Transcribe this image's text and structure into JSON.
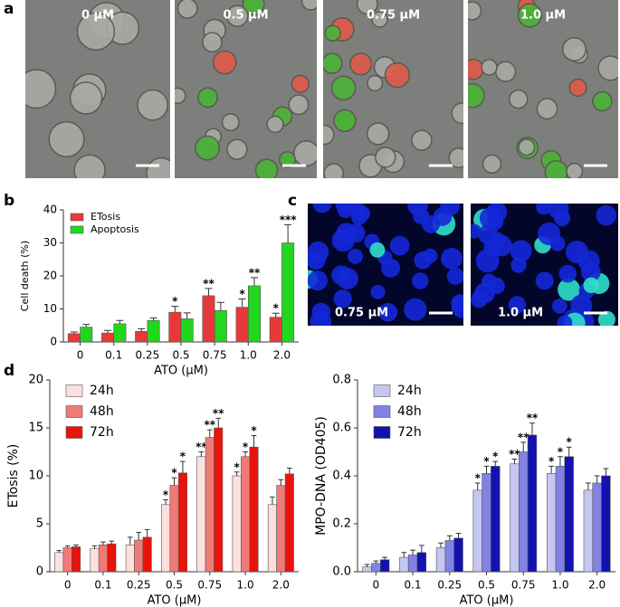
{
  "panels": {
    "a": {
      "label": "a",
      "images": [
        "0 μM",
        "0.5 μM",
        "0.75 μM",
        "1.0 μM"
      ]
    },
    "b": {
      "label": "b"
    },
    "c": {
      "label": "c",
      "images": [
        "0.75 μM",
        "1.0 μM"
      ]
    },
    "d": {
      "label": "d"
    }
  },
  "chart_data": [
    {
      "type": "bar",
      "y_label": "Cell death (%)",
      "x_label": "ATO (μM)",
      "categories": [
        "0",
        "0.1",
        "0.25",
        "0.5",
        "0.75",
        "1.0",
        "2.0"
      ],
      "ylim": [
        0,
        40
      ],
      "yticks": [
        0,
        10,
        20,
        30,
        40
      ],
      "grid": false,
      "legend": "upper left",
      "series": [
        {
          "name": "ETosis",
          "color": "#e8393a",
          "values": [
            2.5,
            2.7,
            3.2,
            9,
            14,
            10.5,
            7.5
          ],
          "errors": [
            0.5,
            0.8,
            0.8,
            1.8,
            2.2,
            2.5,
            1.2
          ],
          "stars": [
            null,
            null,
            null,
            "*",
            "**",
            "*",
            "*"
          ]
        },
        {
          "name": "Apoptosis",
          "color": "#22d61e",
          "values": [
            4.5,
            5.5,
            6.5,
            7,
            9.5,
            17,
            30
          ],
          "errors": [
            0.8,
            1,
            0.8,
            1.8,
            2.5,
            2.5,
            5.5
          ],
          "stars": [
            null,
            null,
            null,
            null,
            null,
            "**",
            "***"
          ]
        }
      ]
    },
    {
      "type": "bar",
      "y_label": "ETosis (%)",
      "x_label": "ATO (μM)",
      "categories": [
        "0",
        "0.1",
        "0.25",
        "0.5",
        "0.75",
        "1.0",
        "2.0"
      ],
      "ylim": [
        0,
        20
      ],
      "yticks": [
        0,
        5,
        10,
        15,
        20
      ],
      "grid": false,
      "legend": "upper left",
      "series": [
        {
          "name": "24h",
          "color": "#fde0de",
          "values": [
            2.0,
            2.4,
            2.8,
            7.0,
            12.0,
            10.0,
            7.0
          ],
          "errors": [
            0.2,
            0.3,
            0.8,
            0.5,
            0.5,
            0.4,
            0.8
          ],
          "stars": [
            null,
            null,
            null,
            "*",
            "**",
            "*",
            null
          ]
        },
        {
          "name": "48h",
          "color": "#f07a78",
          "values": [
            2.5,
            2.8,
            3.3,
            9.0,
            14.0,
            12.0,
            9.0
          ],
          "errors": [
            0.2,
            0.3,
            0.8,
            0.8,
            0.8,
            0.5,
            0.6
          ],
          "stars": [
            null,
            null,
            null,
            "*",
            "**",
            "*",
            null
          ]
        },
        {
          "name": "72h",
          "color": "#e8140c",
          "values": [
            2.6,
            2.9,
            3.6,
            10.3,
            15.0,
            13.0,
            10.2
          ],
          "errors": [
            0.2,
            0.3,
            0.8,
            1.2,
            1.0,
            1.2,
            0.6
          ],
          "stars": [
            null,
            null,
            null,
            "*",
            "**",
            "*",
            null
          ]
        }
      ]
    },
    {
      "type": "bar",
      "y_label": "MPO-DNA (OD405)",
      "x_label": "ATO (μM)",
      "categories": [
        "0",
        "0.1",
        "0.25",
        "0.5",
        "0.75",
        "1.0",
        "2.0"
      ],
      "ylim": [
        0,
        0.8
      ],
      "yticks": [
        {
          "value": 0,
          "label": "0.0"
        },
        0.2,
        0.4,
        0.6,
        0.8
      ],
      "grid": false,
      "legend": "upper left",
      "series": [
        {
          "name": "24h",
          "color": "#c6c6f2",
          "values": [
            0.02,
            0.06,
            0.1,
            0.34,
            0.45,
            0.41,
            0.34
          ],
          "errors": [
            0.01,
            0.02,
            0.02,
            0.03,
            0.02,
            0.03,
            0.03
          ],
          "stars": [
            null,
            null,
            null,
            "*",
            "**",
            "*",
            null
          ]
        },
        {
          "name": "48h",
          "color": "#8282e6",
          "values": [
            0.035,
            0.07,
            0.13,
            0.41,
            0.5,
            0.44,
            0.37
          ],
          "errors": [
            0.01,
            0.02,
            0.02,
            0.03,
            0.04,
            0.04,
            0.03
          ],
          "stars": [
            null,
            null,
            null,
            "*",
            "**",
            "*",
            null
          ]
        },
        {
          "name": "72h",
          "color": "#1212b0",
          "values": [
            0.05,
            0.08,
            0.14,
            0.44,
            0.57,
            0.48,
            0.4
          ],
          "errors": [
            0.01,
            0.03,
            0.02,
            0.02,
            0.05,
            0.04,
            0.03
          ],
          "stars": [
            null,
            null,
            null,
            "*",
            "**",
            "*",
            null
          ]
        }
      ]
    }
  ]
}
